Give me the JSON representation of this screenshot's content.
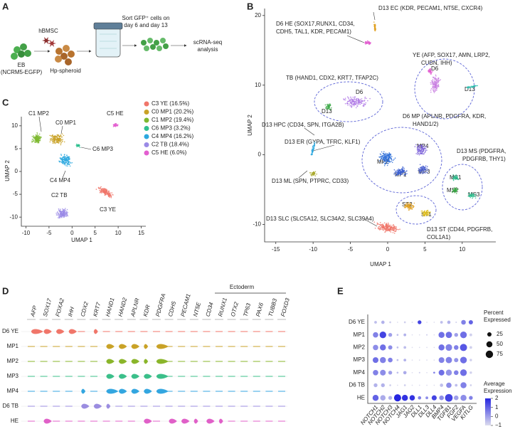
{
  "panels": {
    "a": {
      "label": "A",
      "hbmsc": "hBMSC",
      "eb": "EB",
      "eb_line": "(NCRM5-EGFP)",
      "spheroid": "Hp-spheroid",
      "sort": [
        "Sort GFP⁺ cells on",
        "day 6 and day 13"
      ],
      "seq": [
        "scRNA-seq",
        "analysis"
      ]
    },
    "b": {
      "label": "B",
      "x_label": "UMAP 1",
      "y_label": "UMAP 2",
      "xlim": [
        -16.5,
        14.5
      ],
      "ylim": [
        -12.5,
        21
      ],
      "xticks": [
        -15,
        -10,
        -5,
        0,
        5,
        10
      ],
      "yticks": [
        20,
        10,
        0,
        -10
      ],
      "annotations": [
        "D13 EC (KDR, PECAM1, NT5E, CXCR4)",
        "D6 HE (SOX17,RUNX1, CD34,",
        "CDH5, TAL1, KDR, PECAM1)",
        "YE (AFP, SOX17, AMN, LRP2,",
        "CUBN, IHH)",
        "TB (HAND1, CDX2, KRT7, TFAP2C)",
        "D13 HPC (CD34, SPN, ITGA2B)",
        "D13 ER (GYPA, TFRC, KLF1)",
        "D13 ML (SPN, PTPRC, CD33)",
        "D6 MP (APLNR, PDGFRA, KDR,",
        "HAND1/2)",
        "D13 MS (PDGFRA,",
        "PDGFRB, THY1)",
        "D13 SLC (SLC5A12, SLC34A2, SLC39A4)",
        "D13 ST (CD44, PDGFRB,",
        "COL1A1)"
      ],
      "cluster_labels": [
        "D6",
        "D13",
        "D6",
        "D13",
        "MP4",
        "MP2",
        "MP1",
        "MP3",
        "MS1",
        "MS2",
        "MS3",
        "ST2",
        "ST1"
      ]
    },
    "c": {
      "label": "C",
      "x_label": "UMAP 1",
      "y_label": "UMAP 2",
      "xlim": [
        -11,
        16
      ],
      "ylim": [
        -12,
        12
      ],
      "xticks": [
        -10,
        -5,
        0,
        5,
        10,
        15
      ],
      "yticks": [
        10,
        5,
        0,
        -5,
        -10
      ],
      "legend": [
        {
          "name": "C3 YE (16.5%)",
          "color": "#f0766a"
        },
        {
          "name": "C0 MP1 (20.2%)",
          "color": "#c9a227"
        },
        {
          "name": "C1 MP2 (19.4%)",
          "color": "#7cb82f"
        },
        {
          "name": "C6 MP3 (3.2%)",
          "color": "#2fbf8f"
        },
        {
          "name": "C4 MP4 (16.2%)",
          "color": "#2ca8df"
        },
        {
          "name": "C2 TB (18.4%)",
          "color": "#9a8ae6"
        },
        {
          "name": "C5 HE (6.0%)",
          "color": "#e35fd0"
        }
      ],
      "cluster_labels": [
        "C1 MP2",
        "C0 MP1",
        "C6 MP3",
        "C4 MP4",
        "C5 HE",
        "C3 YE",
        "C2 TB"
      ]
    },
    "d": {
      "label": "D",
      "ectoderm": "Ectoderm",
      "genes": [
        "AFP",
        "SOX17",
        "FOXA2",
        "IHH",
        "CDX2",
        "KRT7",
        "HAND1",
        "HAND2",
        "APLNR",
        "KDR",
        "PDGFRA",
        "CDH5",
        "PECAM1",
        "NT5E",
        "CD34",
        "RUNX1",
        "OTX2",
        "TP63",
        "PAX6",
        "TUBB3",
        "FOXD3"
      ],
      "rows": [
        {
          "name": "D6 YE",
          "color": "#f0766a"
        },
        {
          "name": "MP1",
          "color": "#c9a227"
        },
        {
          "name": "MP2",
          "color": "#8ab52a"
        },
        {
          "name": "MP3",
          "color": "#3bbf8a"
        },
        {
          "name": "MP4",
          "color": "#33a6e0"
        },
        {
          "name": "D6 TB",
          "color": "#9b8de0"
        },
        {
          "name": "HE",
          "color": "#e060c8"
        }
      ],
      "levels": [
        [
          3,
          2,
          2,
          2,
          0,
          1,
          0,
          0,
          0,
          0,
          0,
          0,
          0,
          0,
          0,
          0,
          0,
          0,
          0,
          0,
          0
        ],
        [
          0,
          0,
          0,
          0,
          0,
          0,
          2,
          2,
          2,
          1,
          3,
          0,
          0,
          0,
          0,
          0,
          0,
          0,
          0,
          0,
          0
        ],
        [
          0,
          0,
          0,
          0,
          0,
          0,
          2,
          2,
          2,
          1,
          3,
          0,
          0,
          0,
          0,
          0,
          0,
          0,
          0,
          0,
          0
        ],
        [
          0,
          0,
          0,
          0,
          0,
          0,
          2,
          2,
          2,
          2,
          3,
          0,
          0,
          0,
          0,
          0,
          0,
          0,
          0,
          0,
          0
        ],
        [
          0,
          0,
          0,
          0,
          1,
          0,
          3,
          2,
          2,
          2,
          3,
          0,
          0,
          0,
          0,
          0,
          0,
          0,
          0,
          0,
          0
        ],
        [
          0,
          0,
          0,
          0,
          2,
          2,
          1,
          0,
          0,
          0,
          0,
          0,
          0,
          0,
          0,
          0,
          0,
          0,
          0,
          0,
          0
        ],
        [
          0,
          2,
          0,
          0,
          0,
          0,
          0,
          0,
          0,
          2,
          0,
          2,
          2,
          1,
          2,
          1,
          0,
          0,
          0,
          0,
          0
        ]
      ]
    },
    "e": {
      "label": "E",
      "genes": [
        "NOTCH1",
        "NOTCH2",
        "NOTCH3",
        "NOTCH4",
        "JAG1",
        "JAG2",
        "DLL1",
        "DLL3",
        "DLL4",
        "BMP4",
        "TGFB1",
        "FGF2",
        "VEGFA",
        "KITLG"
      ],
      "rows": [
        "D6 YE",
        "MP1",
        "MP2",
        "MP3",
        "MP4",
        "D6 TB",
        "HE"
      ],
      "percent": [
        [
          10,
          15,
          5,
          2,
          5,
          3,
          20,
          2,
          2,
          10,
          15,
          3,
          30,
          25
        ],
        [
          40,
          60,
          20,
          5,
          10,
          2,
          2,
          3,
          2,
          50,
          55,
          20,
          60,
          10
        ],
        [
          40,
          50,
          25,
          5,
          10,
          2,
          2,
          2,
          2,
          50,
          60,
          30,
          70,
          10
        ],
        [
          45,
          50,
          30,
          5,
          10,
          2,
          2,
          2,
          2,
          45,
          55,
          25,
          60,
          8
        ],
        [
          40,
          45,
          20,
          5,
          15,
          2,
          3,
          2,
          5,
          45,
          50,
          30,
          60,
          8
        ],
        [
          20,
          20,
          5,
          2,
          5,
          2,
          2,
          2,
          2,
          15,
          40,
          10,
          50,
          5
        ],
        [
          50,
          40,
          20,
          70,
          50,
          40,
          15,
          10,
          35,
          30,
          80,
          30,
          50,
          20
        ]
      ],
      "expression": [
        [
          -0.5,
          -0.3,
          -0.8,
          -1,
          -0.8,
          -1,
          1.5,
          -1,
          -1,
          -0.5,
          -0.3,
          -0.8,
          0.5,
          1
        ],
        [
          0.5,
          1.5,
          0,
          -0.5,
          -0.3,
          -1,
          -1,
          -0.8,
          -1,
          0.8,
          0.8,
          0,
          0.8,
          -0.8
        ],
        [
          0.3,
          0.8,
          0.3,
          -0.5,
          -0.5,
          -1,
          -1,
          -1,
          -1,
          0.8,
          0.5,
          0.5,
          1.2,
          -0.8
        ],
        [
          0.8,
          0.5,
          0.5,
          -0.5,
          -0.3,
          -1,
          -1,
          -1,
          -1,
          0.5,
          0.5,
          0.2,
          0.8,
          -0.8
        ],
        [
          0.5,
          0.3,
          0,
          -0.5,
          -0.2,
          -1,
          -0.8,
          -1,
          0.5,
          0.8,
          0.2,
          0.5,
          0.8,
          -0.8
        ],
        [
          -0.3,
          -0.3,
          -0.8,
          -1,
          -0.8,
          -1,
          -1,
          -1,
          -1,
          -0.5,
          0.3,
          -0.5,
          0.5,
          -0.8
        ],
        [
          1,
          -0.2,
          -0.3,
          2,
          1.8,
          1.8,
          0.5,
          0.3,
          1.5,
          0.3,
          1.5,
          0,
          0.3,
          0.5
        ]
      ],
      "size_title": [
        "Percent",
        "Expressed"
      ],
      "size_ticks": [
        25,
        50,
        75
      ],
      "color_title": [
        "Average",
        "Expression"
      ],
      "color_lim": [
        -1,
        2
      ],
      "color_ticks": [
        2,
        1,
        0,
        {
          "value": -1,
          "label": "−1"
        }
      ]
    }
  }
}
